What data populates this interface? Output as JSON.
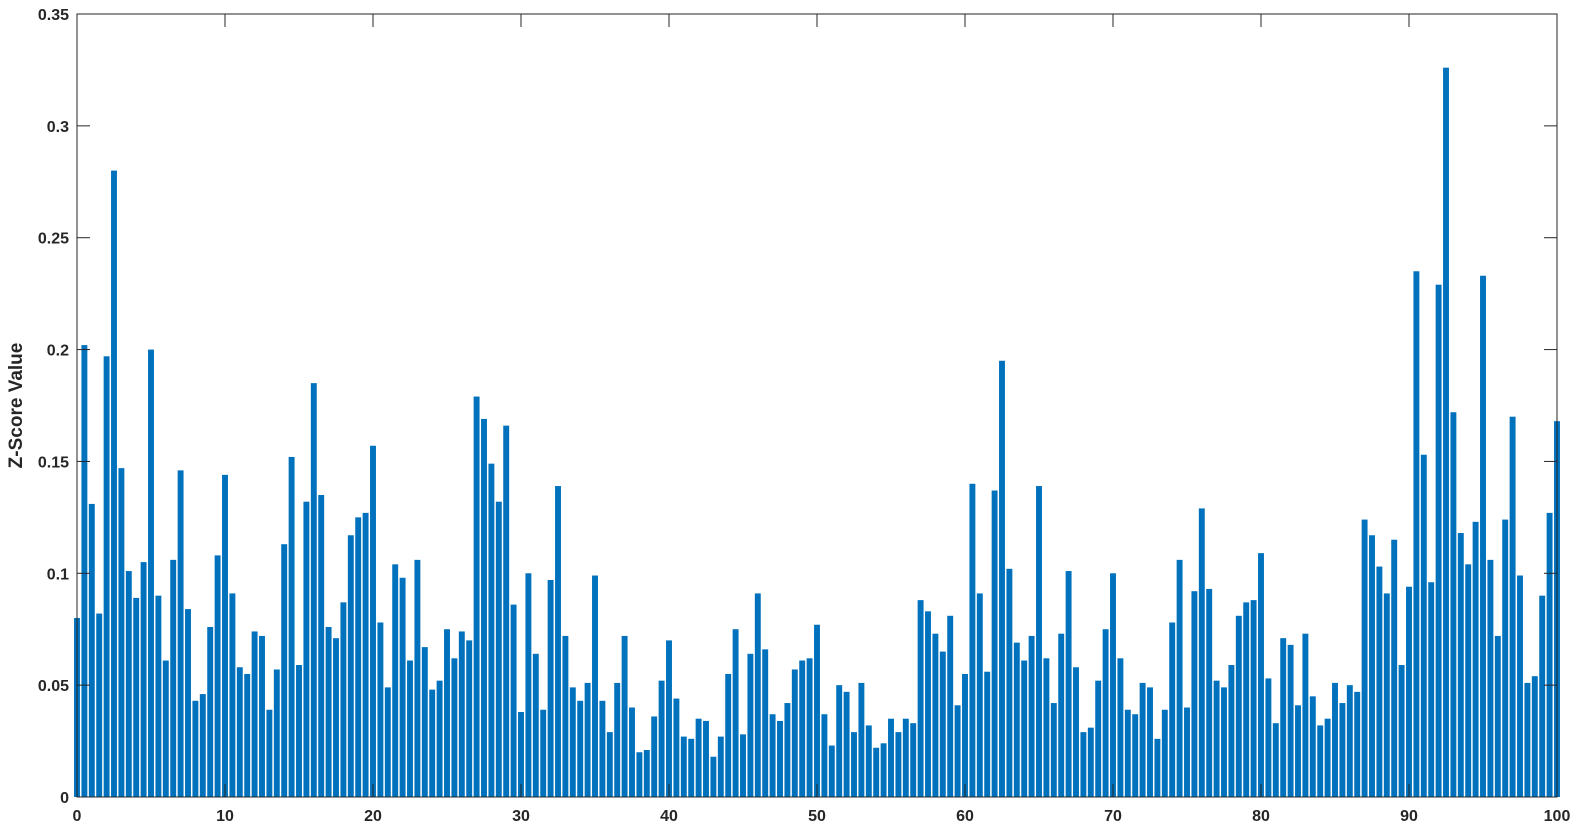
{
  "chart_data": {
    "type": "bar",
    "title": "",
    "xlabel": "",
    "ylabel": "Z-Score Value",
    "xlim": [
      0,
      100
    ],
    "ylim": [
      0,
      0.35
    ],
    "xticks": [
      0,
      10,
      20,
      30,
      40,
      50,
      60,
      70,
      80,
      90,
      100
    ],
    "yticks": [
      0,
      0.05,
      0.1,
      0.15,
      0.2,
      0.25,
      0.3,
      0.35
    ],
    "ytick_labels": [
      "0",
      "0.05",
      "0.1",
      "0.15",
      "0.2",
      "0.25",
      "0.3",
      "0.35"
    ],
    "grid": false,
    "bar_color": "#0072BD",
    "x": [
      0,
      0.5,
      1,
      1.5,
      2,
      2.5,
      3,
      3.5,
      4,
      4.5,
      5,
      5.5,
      6,
      6.5,
      7,
      7.5,
      8,
      8.5,
      9,
      9.5,
      10,
      10.5,
      11,
      11.5,
      12,
      12.5,
      13,
      13.5,
      14,
      14.5,
      15,
      15.5,
      16,
      16.5,
      17,
      17.5,
      18,
      18.5,
      19,
      19.5,
      20,
      20.5,
      21,
      21.5,
      22,
      22.5,
      23,
      23.5,
      24,
      24.5,
      25,
      25.5,
      26,
      26.5,
      27,
      27.5,
      28,
      28.5,
      29,
      29.5,
      30,
      30.5,
      31,
      31.5,
      32,
      32.5,
      33,
      33.5,
      34,
      34.5,
      35,
      35.5,
      36,
      36.5,
      37,
      37.5,
      38,
      38.5,
      39,
      39.5,
      40,
      40.5,
      41,
      41.5,
      42,
      42.5,
      43,
      43.5,
      44,
      44.5,
      45,
      45.5,
      46,
      46.5,
      47,
      47.5,
      48,
      48.5,
      49,
      49.5,
      50,
      50.5,
      51,
      51.5,
      52,
      52.5,
      53,
      53.5,
      54,
      54.5,
      55,
      55.5,
      56,
      56.5,
      57,
      57.5,
      58,
      58.5,
      59,
      59.5,
      60,
      60.5,
      61,
      61.5,
      62,
      62.5,
      63,
      63.5,
      64,
      64.5,
      65,
      65.5,
      66,
      66.5,
      67,
      67.5,
      68,
      68.5,
      69,
      69.5,
      70,
      70.5,
      71,
      71.5,
      72,
      72.5,
      73,
      73.5,
      74,
      74.5,
      75,
      75.5,
      76,
      76.5,
      77,
      77.5,
      78,
      78.5,
      79,
      79.5,
      80,
      80.5,
      81,
      81.5,
      82,
      82.5,
      83,
      83.5,
      84,
      84.5,
      85,
      85.5,
      86,
      86.5,
      87,
      87.5,
      88,
      88.5,
      89,
      89.5,
      90,
      90.5,
      91,
      91.5,
      92,
      92.5,
      93,
      93.5,
      94,
      94.5,
      95,
      95.5,
      96,
      96.5,
      97,
      97.5,
      98,
      98.5,
      99,
      99.5,
      100
    ],
    "values": [
      0.08,
      0.202,
      0.131,
      0.082,
      0.197,
      0.28,
      0.147,
      0.101,
      0.089,
      0.105,
      0.2,
      0.09,
      0.061,
      0.106,
      0.146,
      0.084,
      0.043,
      0.046,
      0.076,
      0.108,
      0.144,
      0.091,
      0.058,
      0.055,
      0.074,
      0.072,
      0.039,
      0.057,
      0.113,
      0.152,
      0.059,
      0.132,
      0.185,
      0.135,
      0.076,
      0.071,
      0.087,
      0.117,
      0.125,
      0.127,
      0.157,
      0.078,
      0.049,
      0.104,
      0.098,
      0.061,
      0.106,
      0.067,
      0.048,
      0.052,
      0.075,
      0.062,
      0.074,
      0.07,
      0.179,
      0.169,
      0.149,
      0.132,
      0.166,
      0.086,
      0.038,
      0.1,
      0.064,
      0.039,
      0.097,
      0.139,
      0.072,
      0.049,
      0.043,
      0.051,
      0.099,
      0.043,
      0.029,
      0.051,
      0.072,
      0.04,
      0.02,
      0.021,
      0.036,
      0.052,
      0.07,
      0.044,
      0.027,
      0.026,
      0.035,
      0.034,
      0.018,
      0.027,
      0.055,
      0.075,
      0.028,
      0.064,
      0.091,
      0.066,
      0.037,
      0.034,
      0.042,
      0.057,
      0.061,
      0.062,
      0.077,
      0.037,
      0.023,
      0.05,
      0.047,
      0.029,
      0.051,
      0.032,
      0.022,
      0.024,
      0.035,
      0.029,
      0.035,
      0.033,
      0.088,
      0.083,
      0.073,
      0.065,
      0.081,
      0.041,
      0.055,
      0.14,
      0.091,
      0.056,
      0.137,
      0.195,
      0.102,
      0.069,
      0.061,
      0.072,
      0.139,
      0.062,
      0.042,
      0.073,
      0.101,
      0.058,
      0.029,
      0.031,
      0.052,
      0.075,
      0.1,
      0.062,
      0.039,
      0.037,
      0.051,
      0.049,
      0.026,
      0.039,
      0.078,
      0.106,
      0.04,
      0.092,
      0.129,
      0.093,
      0.052,
      0.049,
      0.059,
      0.081,
      0.087,
      0.088,
      0.109,
      0.053,
      0.033,
      0.071,
      0.068,
      0.041,
      0.073,
      0.045,
      0.032,
      0.035,
      0.051,
      0.042,
      0.05,
      0.047,
      0.124,
      0.117,
      0.103,
      0.091,
      0.115,
      0.059,
      0.094,
      0.235,
      0.153,
      0.096,
      0.229,
      0.326,
      0.172,
      0.118,
      0.104,
      0.123,
      0.233,
      0.106,
      0.072,
      0.124,
      0.17,
      0.099,
      0.051,
      0.054,
      0.09,
      0.127,
      0.168
    ]
  }
}
